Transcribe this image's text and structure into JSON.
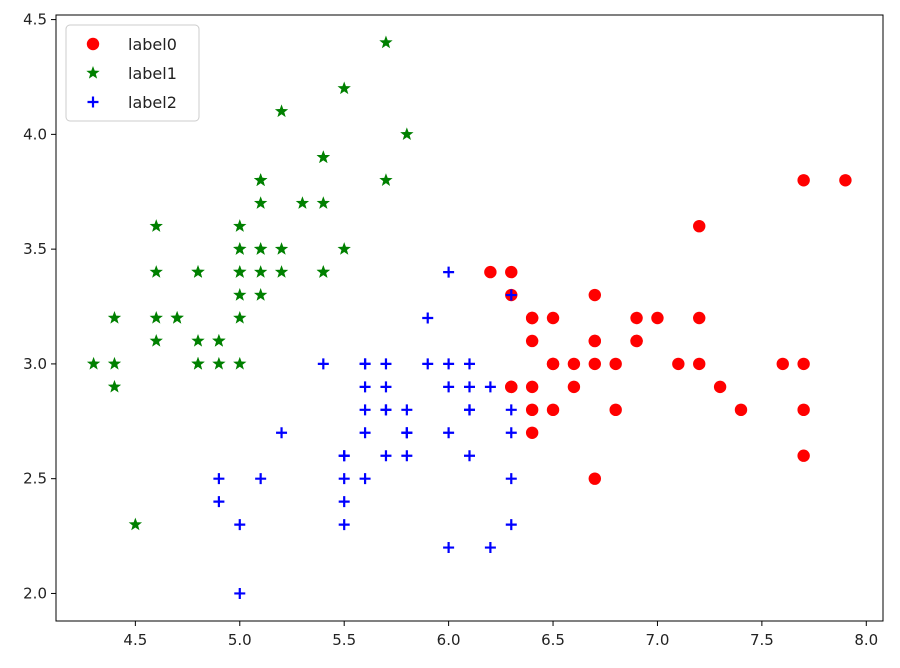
{
  "chart_data": {
    "type": "scatter",
    "title": "",
    "xlabel": "",
    "ylabel": "",
    "xlim": [
      4.12,
      8.08
    ],
    "ylim": [
      1.88,
      4.52
    ],
    "xticks": [
      4.5,
      5.0,
      5.5,
      6.0,
      6.5,
      7.0,
      7.5,
      8.0
    ],
    "xtick_labels": [
      "4.5",
      "5.0",
      "5.5",
      "6.0",
      "6.5",
      "7.0",
      "7.5",
      "8.0"
    ],
    "yticks": [
      2.0,
      2.5,
      3.0,
      3.5,
      4.0,
      4.5
    ],
    "ytick_labels": [
      "2.0",
      "2.5",
      "3.0",
      "3.5",
      "4.0",
      "4.5"
    ],
    "grid": false,
    "legend_position": "top-left",
    "series": [
      {
        "name": "label0",
        "color": "#ff0000",
        "marker": "circle",
        "points": [
          [
            7.0,
            3.2
          ],
          [
            6.4,
            3.2
          ],
          [
            6.9,
            3.1
          ],
          [
            6.5,
            2.8
          ],
          [
            6.3,
            3.3
          ],
          [
            6.6,
            2.9
          ],
          [
            6.7,
            3.1
          ],
          [
            6.3,
            2.9
          ],
          [
            6.2,
            3.4
          ],
          [
            6.3,
            3.4
          ],
          [
            6.4,
            3.1
          ],
          [
            6.7,
            3.0
          ],
          [
            6.8,
            3.0
          ],
          [
            6.4,
            2.9
          ],
          [
            6.8,
            2.8
          ],
          [
            6.7,
            3.3
          ],
          [
            6.9,
            3.2
          ],
          [
            7.1,
            3.0
          ],
          [
            6.5,
            3.0
          ],
          [
            7.6,
            3.0
          ],
          [
            7.3,
            2.9
          ],
          [
            6.7,
            2.5
          ],
          [
            7.2,
            3.6
          ],
          [
            6.5,
            3.2
          ],
          [
            6.4,
            2.7
          ],
          [
            6.4,
            2.8
          ],
          [
            7.7,
            3.8
          ],
          [
            7.7,
            2.6
          ],
          [
            6.9,
            3.1
          ],
          [
            7.7,
            2.8
          ],
          [
            7.2,
            3.2
          ],
          [
            7.2,
            3.0
          ],
          [
            7.4,
            2.8
          ],
          [
            7.9,
            3.8
          ],
          [
            7.7,
            3.0
          ],
          [
            6.4,
            3.2
          ],
          [
            6.7,
            3.1
          ],
          [
            6.3,
            2.9
          ],
          [
            6.5,
            3.0
          ],
          [
            6.6,
            3.0
          ]
        ]
      },
      {
        "name": "label1",
        "color": "#008000",
        "marker": "star",
        "points": [
          [
            5.1,
            3.5
          ],
          [
            4.9,
            3.0
          ],
          [
            4.7,
            3.2
          ],
          [
            4.6,
            3.1
          ],
          [
            5.0,
            3.6
          ],
          [
            5.4,
            3.9
          ],
          [
            4.6,
            3.4
          ],
          [
            5.0,
            3.4
          ],
          [
            4.4,
            2.9
          ],
          [
            4.9,
            3.1
          ],
          [
            5.4,
            3.7
          ],
          [
            4.8,
            3.4
          ],
          [
            4.8,
            3.0
          ],
          [
            4.3,
            3.0
          ],
          [
            5.8,
            4.0
          ],
          [
            5.7,
            4.4
          ],
          [
            5.4,
            3.9
          ],
          [
            5.1,
            3.5
          ],
          [
            5.7,
            3.8
          ],
          [
            5.1,
            3.8
          ],
          [
            5.4,
            3.4
          ],
          [
            5.1,
            3.7
          ],
          [
            4.6,
            3.6
          ],
          [
            5.1,
            3.3
          ],
          [
            4.8,
            3.4
          ],
          [
            5.0,
            3.0
          ],
          [
            5.0,
            3.4
          ],
          [
            5.2,
            3.5
          ],
          [
            5.2,
            3.4
          ],
          [
            4.7,
            3.2
          ],
          [
            4.8,
            3.1
          ],
          [
            5.4,
            3.4
          ],
          [
            5.2,
            4.1
          ],
          [
            5.5,
            4.2
          ],
          [
            4.9,
            3.1
          ],
          [
            5.0,
            3.2
          ],
          [
            5.5,
            3.5
          ],
          [
            4.4,
            3.0
          ],
          [
            5.1,
            3.4
          ],
          [
            5.0,
            3.5
          ],
          [
            4.5,
            2.3
          ],
          [
            4.4,
            3.2
          ],
          [
            5.0,
            3.5
          ],
          [
            5.1,
            3.8
          ],
          [
            4.8,
            3.0
          ],
          [
            5.1,
            3.8
          ],
          [
            4.6,
            3.2
          ],
          [
            5.3,
            3.7
          ],
          [
            5.0,
            3.3
          ]
        ]
      },
      {
        "name": "label2",
        "color": "#0000ff",
        "marker": "plus",
        "points": [
          [
            5.5,
            2.3
          ],
          [
            5.7,
            2.8
          ],
          [
            6.3,
            3.3
          ],
          [
            4.9,
            2.4
          ],
          [
            5.2,
            2.7
          ],
          [
            5.0,
            2.0
          ],
          [
            5.9,
            3.0
          ],
          [
            6.0,
            2.2
          ],
          [
            6.1,
            2.9
          ],
          [
            5.6,
            2.9
          ],
          [
            5.6,
            3.0
          ],
          [
            5.8,
            2.7
          ],
          [
            6.2,
            2.2
          ],
          [
            5.6,
            2.5
          ],
          [
            5.9,
            3.2
          ],
          [
            6.1,
            2.8
          ],
          [
            6.3,
            2.5
          ],
          [
            6.1,
            2.8
          ],
          [
            6.0,
            2.9
          ],
          [
            5.7,
            2.6
          ],
          [
            5.5,
            2.4
          ],
          [
            5.8,
            2.7
          ],
          [
            6.0,
            2.7
          ],
          [
            5.4,
            3.0
          ],
          [
            6.0,
            3.4
          ],
          [
            6.3,
            2.3
          ],
          [
            5.6,
            3.0
          ],
          [
            5.5,
            2.5
          ],
          [
            5.5,
            2.6
          ],
          [
            6.1,
            3.0
          ],
          [
            5.8,
            2.6
          ],
          [
            5.0,
            2.3
          ],
          [
            5.6,
            2.7
          ],
          [
            5.7,
            3.0
          ],
          [
            5.7,
            2.9
          ],
          [
            6.2,
            2.9
          ],
          [
            5.1,
            2.5
          ],
          [
            5.7,
            2.8
          ],
          [
            4.9,
            2.5
          ],
          [
            6.3,
            2.7
          ],
          [
            6.0,
            3.0
          ],
          [
            5.8,
            2.8
          ],
          [
            6.1,
            2.6
          ],
          [
            5.6,
            2.8
          ],
          [
            6.3,
            2.8
          ],
          [
            5.5,
            2.6
          ]
        ]
      }
    ]
  }
}
